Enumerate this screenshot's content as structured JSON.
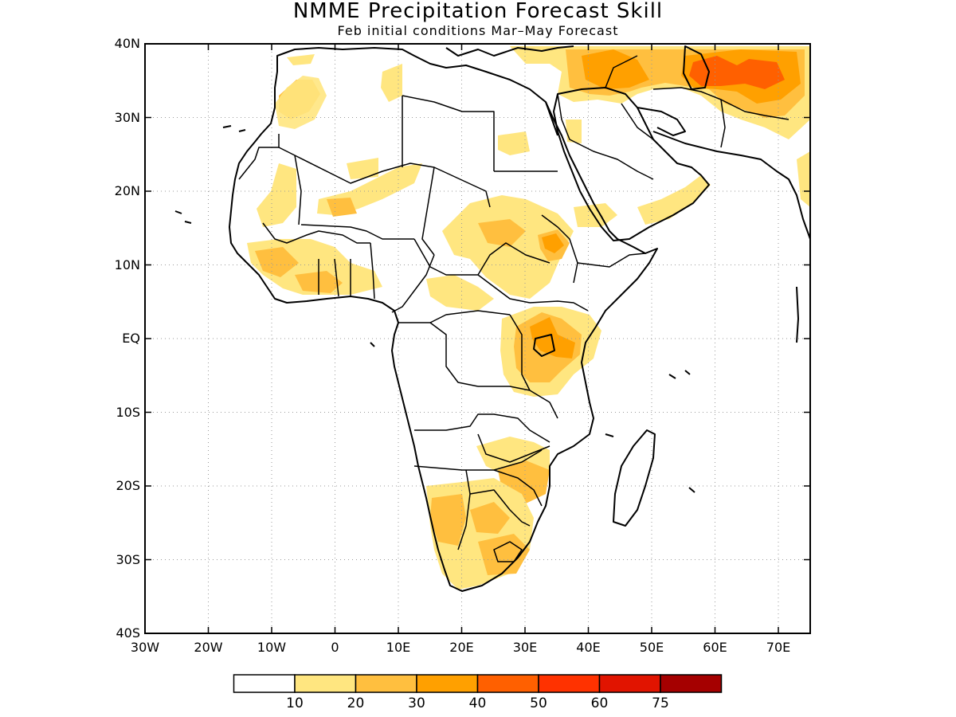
{
  "title": "NMME Precipitation Forecast Skill",
  "subtitle": "Feb initial conditions  Mar–May Forecast",
  "lat_ticks": [
    "40N",
    "30N",
    "20N",
    "10N",
    "EQ",
    "10S",
    "20S",
    "30S",
    "40S"
  ],
  "lon_ticks": [
    "30W",
    "20W",
    "10W",
    "0",
    "10E",
    "20E",
    "30E",
    "40E",
    "50E",
    "60E",
    "70E"
  ],
  "colorbar": {
    "labels": [
      "10",
      "20",
      "30",
      "40",
      "50",
      "60",
      "75"
    ],
    "colors": [
      "#ffffff",
      "#ffe680",
      "#ffbf3f",
      "#ffa000",
      "#ff6000",
      "#ff3200",
      "#e11400",
      "#a50000"
    ]
  },
  "map": {
    "region": "Africa",
    "lon_range": [
      -30,
      75
    ],
    "lat_range": [
      -40,
      40
    ],
    "grid": true,
    "variable": "precipitation forecast skill"
  }
}
